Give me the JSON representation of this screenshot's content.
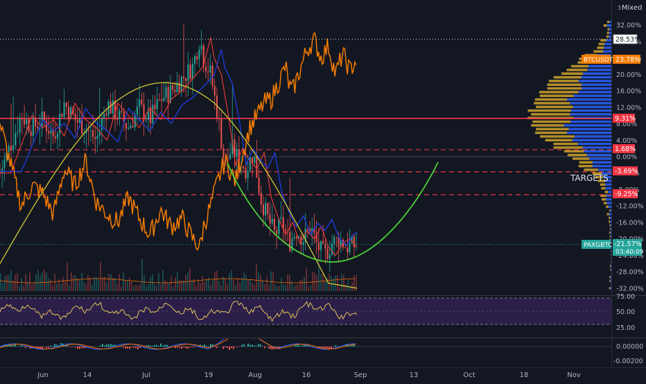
{
  "header": {
    "scale_mode": "Mixed",
    "scale_marker": "3"
  },
  "colors": {
    "background": "#131722",
    "paxgbtc": "#ef6c00",
    "btc_line": "#f57c00",
    "paxg_badge": "#26a69a",
    "btc_badge": "#f57c00",
    "ma_red": "#e53935",
    "ma_blue": "#1e3bd8",
    "ma_yellow": "#d4cc31",
    "curve_green": "#4caf50",
    "level_red": "#f23645",
    "rsi": "#e5c45a",
    "rsi_band": "#2b1f4a",
    "vp_blue": "#2962ff",
    "vp_gold": "#c79c2a"
  },
  "annotation": {
    "targets_label": "TARGETS"
  },
  "badges": {
    "top_level": "28.53%",
    "btcusdt_name": "BTCUSDT",
    "btcusdt_value": "23.78%",
    "level_1": "9.31%",
    "level_2": "1.68%",
    "level_3": "-3.69%",
    "level_4": "-9.25%",
    "paxgbtc_name": "PAXGBTC",
    "paxgbtc_value": "-21.57%",
    "paxgbtc_timer": "03:40:09"
  },
  "price_axis": {
    "ticks": [
      "32.00%",
      "28.00%",
      "24.00%",
      "20.00%",
      "16.00%",
      "12.00%",
      "8.00%",
      "4.00%",
      "0.00%",
      "-4.00%",
      "-8.00%",
      "-12.00%",
      "-16.00%",
      "-20.00%",
      "-24.00%",
      "-28.00%",
      "-32.00%"
    ]
  },
  "rsi_axis": {
    "ticks": [
      "75.00",
      "50.00",
      "25.00"
    ]
  },
  "macd_axis": {
    "ticks": [
      "0.00000",
      "-0.00200"
    ]
  },
  "time_axis": {
    "ticks": [
      "Jun",
      "14",
      "Jul",
      "19",
      "Aug",
      "16",
      "Sep",
      "13",
      "Oct",
      "18",
      "Nov"
    ]
  },
  "chart_data": {
    "type": "line",
    "title": "",
    "y_unit": "%",
    "ylim": [
      -34,
      36
    ],
    "x_ticks": [
      "Jun",
      "14",
      "Jul",
      "19",
      "Aug",
      "16",
      "Sep",
      "13",
      "Oct",
      "18",
      "Nov"
    ],
    "horizontal_levels": [
      9.31,
      1.68,
      -3.69,
      -9.25
    ],
    "last_values": {
      "BTCUSDT": 23.78,
      "PAXGBTC": -21.57,
      "high": 28.53
    },
    "series": [
      {
        "name": "BTCUSDT",
        "points": [
          [
            0,
            8
          ],
          [
            3,
            -2
          ],
          [
            6,
            -12
          ],
          [
            9,
            -7
          ],
          [
            12,
            -9
          ],
          [
            15,
            -14
          ],
          [
            18,
            -3
          ],
          [
            21,
            -7
          ],
          [
            24,
            -1
          ],
          [
            27,
            -11
          ],
          [
            30,
            -14
          ],
          [
            33,
            -16
          ],
          [
            36,
            -10
          ],
          [
            39,
            -15
          ],
          [
            42,
            -19
          ],
          [
            45,
            -13
          ],
          [
            48,
            -17
          ],
          [
            51,
            -15
          ],
          [
            54,
            -20
          ],
          [
            56,
            -22
          ],
          [
            57,
            -17
          ],
          [
            59,
            -12
          ],
          [
            61,
            -6
          ],
          [
            63,
            -1
          ],
          [
            66,
            -6
          ],
          [
            68,
            1
          ],
          [
            70,
            7
          ],
          [
            72,
            10
          ],
          [
            74,
            13
          ],
          [
            76,
            14
          ],
          [
            78,
            18
          ],
          [
            80,
            22
          ],
          [
            81,
            17
          ],
          [
            82,
            16
          ],
          [
            84,
            21
          ],
          [
            86,
            26
          ],
          [
            88,
            28.5
          ],
          [
            90,
            24
          ],
          [
            92,
            27
          ],
          [
            94,
            20
          ],
          [
            96,
            25
          ],
          [
            98,
            21
          ],
          [
            100,
            23.78
          ]
        ]
      },
      {
        "name": "PAXGBTC",
        "points": [
          [
            0,
            -4
          ],
          [
            3,
            3
          ],
          [
            6,
            10
          ],
          [
            9,
            7
          ],
          [
            12,
            9
          ],
          [
            15,
            5
          ],
          [
            18,
            13
          ],
          [
            21,
            9
          ],
          [
            24,
            7
          ],
          [
            27,
            4
          ],
          [
            30,
            13
          ],
          [
            33,
            10
          ],
          [
            36,
            7
          ],
          [
            39,
            12
          ],
          [
            42,
            9
          ],
          [
            45,
            14
          ],
          [
            48,
            16
          ],
          [
            51,
            19
          ],
          [
            54,
            22
          ],
          [
            56,
            29
          ],
          [
            57,
            24
          ],
          [
            59,
            20
          ],
          [
            61,
            10
          ],
          [
            63,
            -2
          ],
          [
            65,
            2
          ],
          [
            67,
            -1
          ],
          [
            69,
            -3
          ],
          [
            71,
            1
          ],
          [
            73,
            -10
          ],
          [
            75,
            -15
          ],
          [
            77,
            -19
          ],
          [
            79,
            -16
          ],
          [
            81,
            -21
          ],
          [
            83,
            -18
          ],
          [
            85,
            -20
          ],
          [
            87,
            -17
          ],
          [
            89,
            -22
          ],
          [
            91,
            -24
          ],
          [
            93,
            -21
          ],
          [
            95,
            -20
          ],
          [
            97,
            -22
          ],
          [
            100,
            -21.57
          ]
        ]
      }
    ],
    "volume_profile": {
      "poc": 9.31
    },
    "rsi_levels": [
      75,
      50,
      25
    ],
    "macd_range": [
      -0.002,
      0.0
    ]
  }
}
